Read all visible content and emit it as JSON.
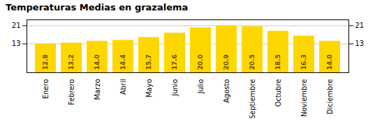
{
  "chart_data": {
    "type": "bar",
    "title": "Temperaturas Medias en grazalema",
    "categories": [
      "Enero",
      "Febrero",
      "Marzo",
      "Abril",
      "Mayo",
      "Junio",
      "Julio",
      "Agosto",
      "Septiembre",
      "Octubre",
      "Noviembre",
      "Diciembre"
    ],
    "values": [
      12.8,
      13.2,
      14.0,
      14.4,
      15.7,
      17.6,
      20.0,
      20.9,
      20.5,
      18.5,
      16.3,
      14.0
    ],
    "value_labels": [
      "12.8",
      "13.2",
      "14.0",
      "14.4",
      "15.7",
      "17.6",
      "20.0",
      "20.9",
      "20.5",
      "18.5",
      "16.3",
      "14.0"
    ],
    "color": "#FFD700",
    "ylim": [
      0.0,
      23.5
    ],
    "yticks": [
      12.8,
      20.9
    ],
    "grid": true,
    "data_labels": true
  }
}
